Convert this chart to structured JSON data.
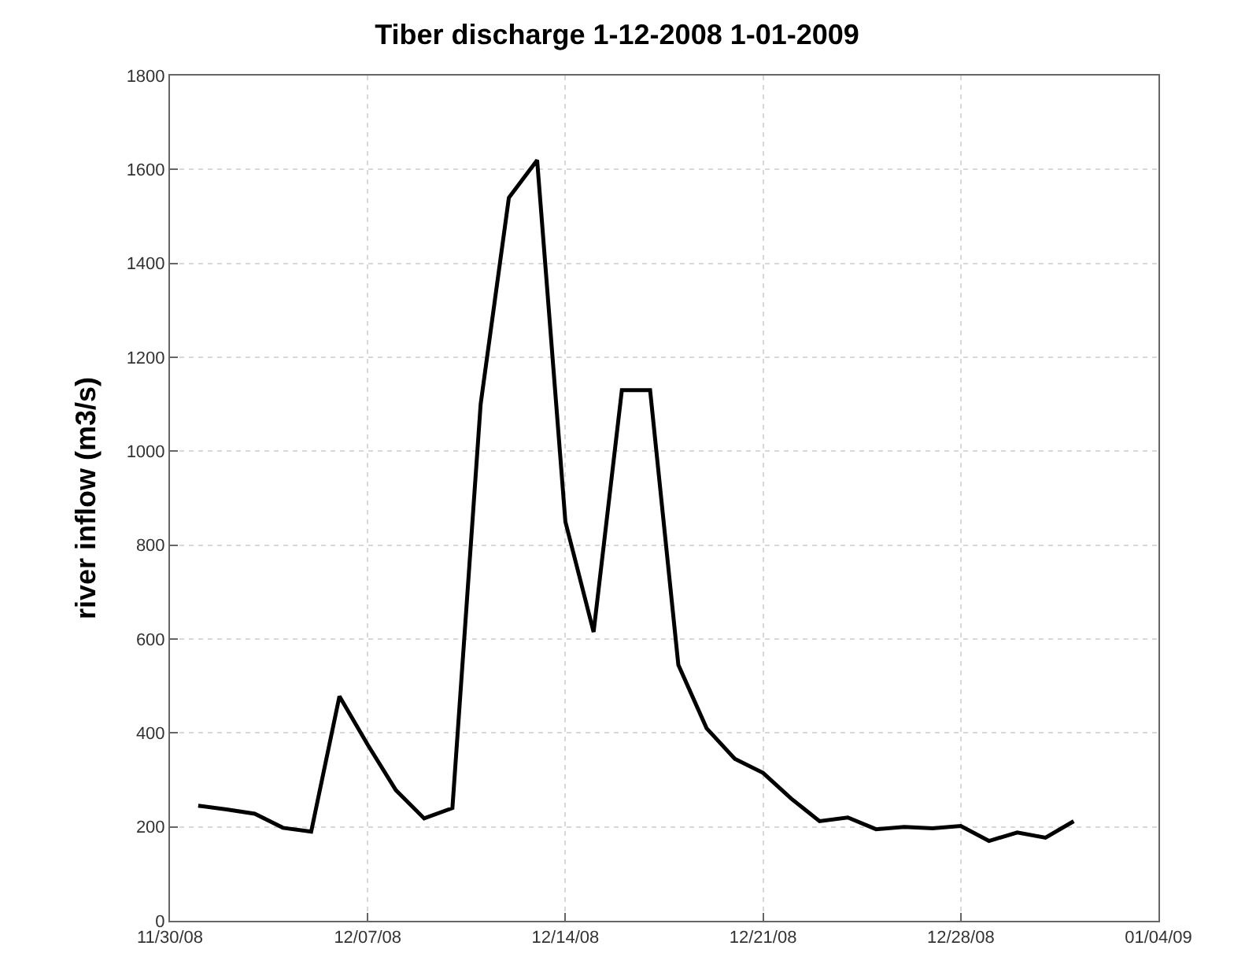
{
  "chart_data": {
    "type": "line",
    "title": "Tiber discharge 1-12-2008 1-01-2009",
    "ylabel": "river inflow (m3/s)",
    "x": [
      "2008-12-01",
      "2008-12-02",
      "2008-12-03",
      "2008-12-04",
      "2008-12-05",
      "2008-12-06",
      "2008-12-07",
      "2008-12-08",
      "2008-12-09",
      "2008-12-10",
      "2008-12-11",
      "2008-12-12",
      "2008-12-13",
      "2008-12-14",
      "2008-12-15",
      "2008-12-16",
      "2008-12-17",
      "2008-12-18",
      "2008-12-19",
      "2008-12-20",
      "2008-12-21",
      "2008-12-22",
      "2008-12-23",
      "2008-12-24",
      "2008-12-25",
      "2008-12-26",
      "2008-12-27",
      "2008-12-28",
      "2008-12-29",
      "2008-12-30",
      "2008-12-31",
      "2009-01-01"
    ],
    "series": [
      {
        "color": "#000000",
        "values": [
          245,
          237,
          228,
          198,
          190,
          478,
          375,
          278,
          218,
          240,
          1100,
          1540,
          1620,
          850,
          615,
          1130,
          1130,
          545,
          410,
          345,
          315,
          260,
          212,
          220,
          195,
          200,
          197,
          202,
          170,
          188,
          177,
          212
        ]
      }
    ],
    "xlim": [
      "2008-11-30",
      "2009-01-04"
    ],
    "xticks": [
      {
        "value": "2008-11-30",
        "label": "11/30/08"
      },
      {
        "value": "2008-12-07",
        "label": "12/07/08"
      },
      {
        "value": "2008-12-14",
        "label": "12/14/08"
      },
      {
        "value": "2008-12-21",
        "label": "12/21/08"
      },
      {
        "value": "2008-12-28",
        "label": "12/28/08"
      },
      {
        "value": "2009-01-04",
        "label": "01/04/09"
      }
    ],
    "ylim": [
      0,
      1800
    ],
    "yticks": [
      0,
      200,
      400,
      600,
      800,
      1000,
      1200,
      1400,
      1600,
      1800
    ],
    "grid": true,
    "marker": "none",
    "line_style": "solid"
  }
}
